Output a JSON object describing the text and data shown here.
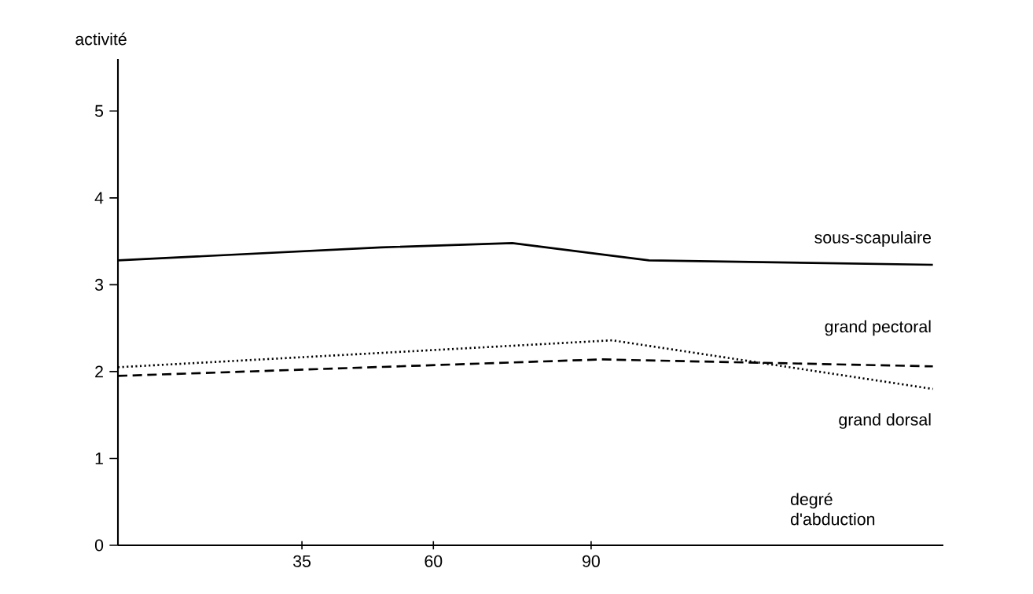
{
  "chart_data": {
    "type": "line",
    "xlabel": "degré d'abduction",
    "ylabel": "activité",
    "xlim": [
      0,
      157
    ],
    "xticks": [
      35,
      60,
      90
    ],
    "ylim": [
      0,
      5.6
    ],
    "yticks": [
      0,
      1,
      2,
      3,
      4,
      5
    ],
    "grid": false,
    "series": [
      {
        "name": "sous-scapulaire",
        "color": "#000000",
        "line_style": "solid",
        "x": [
          0,
          50,
          75,
          101,
          155
        ],
        "values": [
          3.28,
          3.43,
          3.48,
          3.28,
          3.23
        ]
      },
      {
        "name": "grand pectoral",
        "color": "#000000",
        "line_style": "dashed",
        "x": [
          0,
          92,
          155
        ],
        "values": [
          1.95,
          2.14,
          2.06
        ]
      },
      {
        "name": "grand dorsal",
        "color": "#000000",
        "line_style": "dotted",
        "x": [
          0,
          94,
          155
        ],
        "values": [
          2.05,
          2.36,
          1.8
        ]
      }
    ]
  }
}
